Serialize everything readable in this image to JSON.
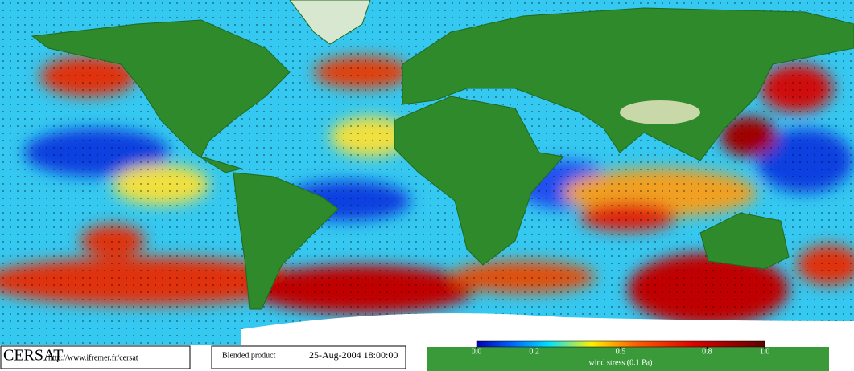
{
  "map": {
    "logo": "CERSAT",
    "url": "http://www.ifremer.fr/cersat",
    "product": "Blended product",
    "date": "25-Aug-2004 18:00:00",
    "colorbar": {
      "label": "wind stress (0.1 Pa)",
      "lim": [
        0,
        1
      ],
      "ticks": [
        {
          "value": 0,
          "label": "0.0"
        },
        0.2,
        0.5,
        0.8,
        {
          "value": 1,
          "label": "1.0"
        }
      ]
    }
  }
}
